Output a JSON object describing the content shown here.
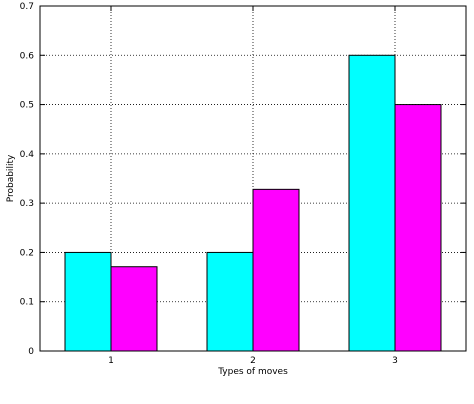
{
  "chart_data": {
    "type": "bar",
    "categories": [
      "1",
      "2",
      "3"
    ],
    "series": [
      {
        "values": [
          0.2,
          0.2,
          0.6
        ],
        "color": "#00ffff"
      },
      {
        "values": [
          0.171,
          0.328,
          0.5
        ],
        "color": "#ff00ff"
      }
    ],
    "xlabel": "Types of moves",
    "ylabel": "Probability",
    "ylim": [
      0,
      0.7
    ],
    "yticks": [
      "0",
      "0.1",
      "0.2",
      "0.3",
      "0.4",
      "0.5",
      "0.6",
      "0.7"
    ],
    "grid": true,
    "grid_style": "dotted"
  }
}
